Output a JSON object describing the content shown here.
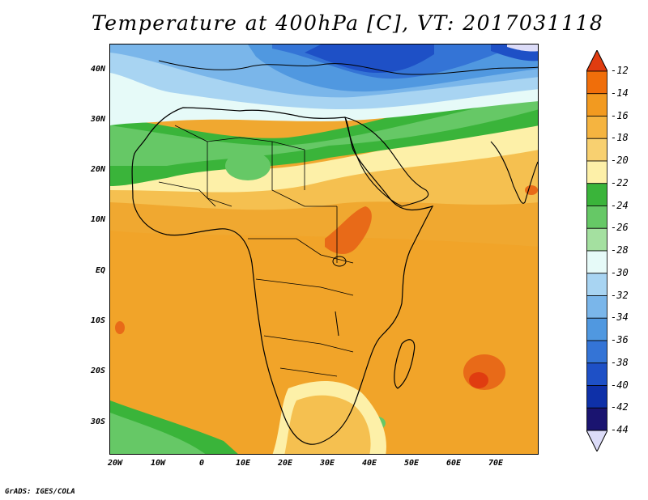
{
  "title": "Temperature at 400hPa [C], VT: 2017031118",
  "credit": "GrADS: IGES/COLA",
  "x_axis": {
    "ticks": [
      "20W",
      "10W",
      "0",
      "10E",
      "20E",
      "30E",
      "40E",
      "50E",
      "60E",
      "70E"
    ]
  },
  "y_axis": {
    "ticks": [
      "40N",
      "30N",
      "20N",
      "10N",
      "EQ",
      "10S",
      "20S",
      "30S"
    ]
  },
  "colorbar": {
    "levels": [
      "-12",
      "-14",
      "-16",
      "-18",
      "-20",
      "-22",
      "-24",
      "-26",
      "-28",
      "-30",
      "-32",
      "-34",
      "-36",
      "-38",
      "-40",
      "-42",
      "-44"
    ],
    "colors": [
      "#e03c10",
      "#f06e0a",
      "#f29a20",
      "#f5b440",
      "#f8d070",
      "#fdf0a8",
      "#3ab43a",
      "#66c866",
      "#a4e0a0",
      "#e6faf8",
      "#a8d4f2",
      "#7ab6ea",
      "#5098e0",
      "#3474d6",
      "#1e50c6",
      "#0e30a8",
      "#1a1470",
      "#dcdcf8"
    ]
  },
  "legend": {
    "colors": {
      "background": "#f0a830",
      "warm_core": "#e86a18",
      "cold_north": "#1e50c6",
      "green_band": "#3ab43a",
      "pale_band": "#fdf0a8"
    }
  }
}
